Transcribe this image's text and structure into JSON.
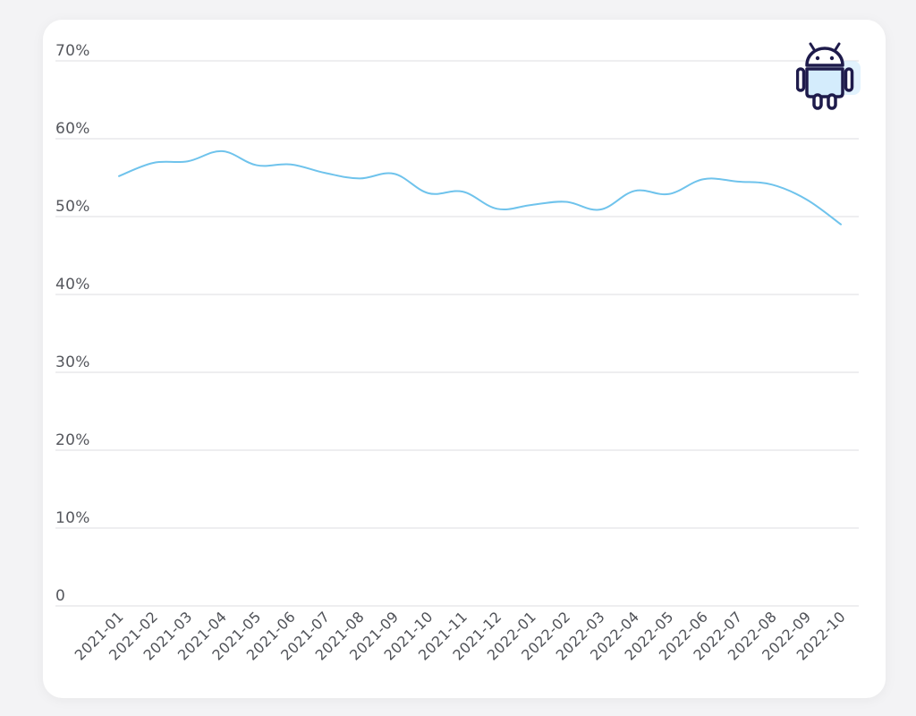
{
  "chart_data": {
    "type": "line",
    "title": "",
    "xlabel": "",
    "ylabel": "",
    "ylim": [
      0,
      70
    ],
    "y_ticks": [
      {
        "value": 70,
        "label": "70%"
      },
      {
        "value": 60,
        "label": "60%"
      },
      {
        "value": 50,
        "label": "50%"
      },
      {
        "value": 40,
        "label": "40%"
      },
      {
        "value": 30,
        "label": "30%"
      },
      {
        "value": 20,
        "label": "20%"
      },
      {
        "value": 10,
        "label": "10%"
      },
      {
        "value": 0,
        "label": "0"
      }
    ],
    "x": [
      "2021-01",
      "2021-02",
      "2021-03",
      "2021-04",
      "2021-05",
      "2021-06",
      "2021-07",
      "2021-08",
      "2021-09",
      "2021-10",
      "2021-11",
      "2021-12",
      "2022-01",
      "2022-02",
      "2022-03",
      "2022-04",
      "2022-05",
      "2022-06",
      "2022-07",
      "2022-08",
      "2022-09",
      "2022-10"
    ],
    "series": [
      {
        "color": "#6fc3ec",
        "values": [
          55.2,
          56.9,
          57.1,
          58.4,
          56.6,
          56.7,
          55.6,
          54.9,
          55.5,
          53.0,
          53.2,
          51.0,
          51.5,
          51.9,
          50.9,
          53.3,
          52.9,
          54.8,
          54.5,
          54.1,
          52.2,
          49.0
        ]
      }
    ],
    "grid": true,
    "legend": "none"
  },
  "colors": {
    "line": "#6fc3ec",
    "grid": "#e4e4e8",
    "icon_stroke": "#1e1b4b",
    "icon_fill": "#d4ecfc"
  },
  "icon": "android-icon"
}
